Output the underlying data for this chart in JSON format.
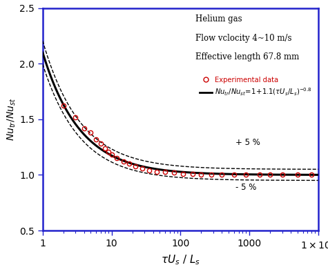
{
  "xlim": [
    1,
    10000
  ],
  "ylim": [
    0.5,
    2.5
  ],
  "yticks": [
    0.5,
    1.0,
    1.5,
    2.0,
    2.5
  ],
  "xlabel_raw": "tU_s / L_s",
  "ylabel_raw": "Nu_tr/Nu_st",
  "annotation_lines": [
    "Helium gas",
    "Flow vclocity 4~10 m/s",
    "Effective length 67.8 mm"
  ],
  "exp_label": "Experimental data",
  "plus5_label": "+ 5 %",
  "minus5_label": "- 5 %",
  "line_color": "#000000",
  "exp_color": "#cc0000",
  "border_color": "#2222cc",
  "background_color": "#ffffff",
  "exp_x": [
    2,
    3,
    4,
    5,
    6,
    7,
    8,
    9,
    10,
    12,
    15,
    18,
    22,
    28,
    35,
    45,
    60,
    80,
    110,
    150,
    200,
    280,
    400,
    600,
    900,
    1400,
    2000,
    3000,
    5000,
    8000
  ],
  "exp_y": [
    1.62,
    1.52,
    1.42,
    1.38,
    1.32,
    1.28,
    1.24,
    1.21,
    1.18,
    1.15,
    1.12,
    1.1,
    1.08,
    1.06,
    1.04,
    1.03,
    1.025,
    1.02,
    1.01,
    1.01,
    1.005,
    1.005,
    1.003,
    1.002,
    1.001,
    1.001,
    1.0,
    1.0,
    1.0,
    1.0
  ],
  "figwidth": 4.75,
  "figheight": 3.84,
  "dpi": 100
}
